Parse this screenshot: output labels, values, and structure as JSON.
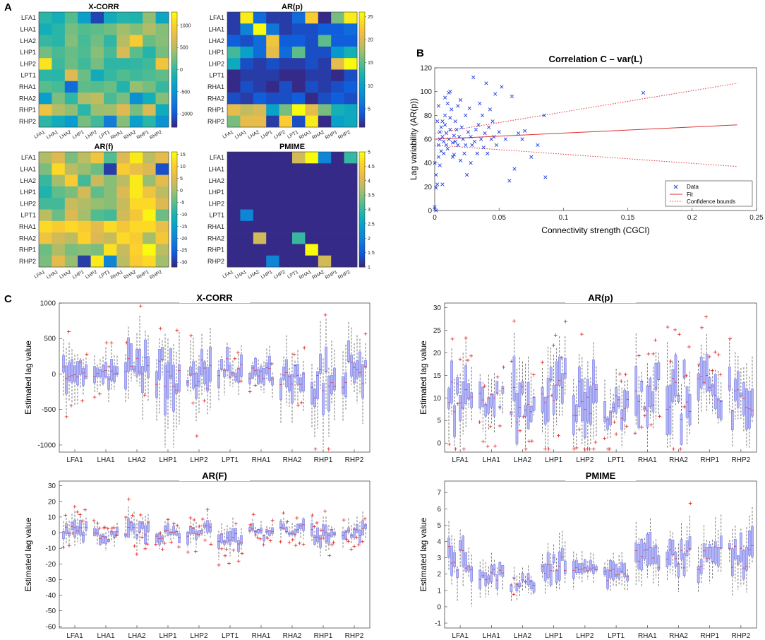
{
  "panels": {
    "A": "A",
    "B": "B",
    "C": "C"
  },
  "regions": [
    "LFA1",
    "LHA1",
    "LHA2",
    "LHP1",
    "LHP2",
    "LPT1",
    "RHA1",
    "RHA2",
    "RHP1",
    "RHP2"
  ],
  "heatmap_rows": [
    "LFA1",
    "LHA1",
    "LHA2",
    "LHP1",
    "LHP2",
    "LPT1",
    "RHA1",
    "RHA2",
    "RHP1",
    "RHP2"
  ],
  "heatmap_cols": [
    "LFA1",
    "LHA1",
    "LHA2",
    "LHP1",
    "LHP2",
    "LPT1",
    "RHA1",
    "RHA2",
    "RHP1",
    "RHP2"
  ],
  "chart_data": [
    {
      "type": "heatmap",
      "id": "hm-xcorr",
      "title": "X-CORR",
      "clim": [
        -1300,
        1300
      ],
      "colorbar_ticks": [
        1000,
        500,
        0,
        -500,
        -1000
      ],
      "colorbar_labels": [
        "1000",
        "500",
        "0",
        "-500",
        "-1000"
      ],
      "values": [
        [
          -50,
          -180,
          120,
          -380,
          -1150,
          -230,
          -80,
          -100,
          360,
          -300
        ],
        [
          -180,
          -60,
          250,
          120,
          160,
          230,
          420,
          300,
          480,
          310
        ],
        [
          0,
          -60,
          310,
          70,
          240,
          -30,
          520,
          970,
          200,
          320
        ],
        [
          240,
          80,
          200,
          100,
          320,
          80,
          680,
          160,
          -80,
          260
        ],
        [
          1150,
          30,
          220,
          40,
          250,
          -40,
          -40,
          -20,
          40,
          880
        ],
        [
          -40,
          -60,
          720,
          210,
          -230,
          -10,
          120,
          40,
          100,
          170
        ],
        [
          140,
          70,
          -880,
          160,
          130,
          210,
          -90,
          380,
          260,
          0
        ],
        [
          -400,
          280,
          -30,
          470,
          560,
          80,
          270,
          -540,
          -180,
          310
        ],
        [
          860,
          500,
          360,
          -60,
          400,
          420,
          720,
          260,
          690,
          -220
        ],
        [
          -40,
          -220,
          -420,
          260,
          40,
          -720,
          310,
          -380,
          -60,
          -520
        ]
      ]
    },
    {
      "type": "heatmap",
      "id": "hm-arp",
      "title": "AR(p)",
      "clim": [
        1,
        26
      ],
      "colorbar_ticks": [
        25,
        20,
        15,
        10,
        5
      ],
      "colorbar_labels": [
        "25",
        "20",
        "15",
        "10",
        "5"
      ],
      "values": [
        [
          2,
          25,
          5,
          2,
          2,
          5,
          23,
          1,
          16,
          25
        ],
        [
          2,
          7,
          26,
          6,
          2,
          3,
          3,
          4,
          4,
          5
        ],
        [
          4,
          3,
          5,
          22,
          4,
          4,
          3,
          15,
          4,
          4
        ],
        [
          14,
          10,
          5,
          21,
          5,
          15,
          3,
          3,
          9,
          12
        ],
        [
          11,
          3,
          2,
          3,
          2,
          2,
          3,
          2,
          21,
          26
        ],
        [
          1,
          2,
          2,
          2,
          1,
          1,
          2,
          2,
          1,
          3
        ],
        [
          1,
          3,
          2,
          1,
          3,
          1,
          3,
          2,
          3,
          4
        ],
        [
          3,
          2,
          4,
          3,
          3,
          4,
          1,
          3,
          4,
          3
        ],
        [
          21,
          19,
          20,
          10,
          16,
          26,
          21,
          16,
          12,
          11
        ],
        [
          16,
          21,
          21,
          2,
          23,
          3,
          25,
          1,
          10,
          11
        ]
      ]
    },
    {
      "type": "heatmap",
      "id": "hm-arf",
      "title": "AR(f)",
      "clim": [
        -32,
        16
      ],
      "colorbar_ticks": [
        15,
        10,
        5,
        0,
        -5,
        -10,
        -15,
        -20,
        -25,
        -30
      ],
      "colorbar_labels": [
        "15",
        "10",
        "5",
        "0",
        "-5",
        "-10",
        "-15",
        "-20",
        "-25",
        "-30"
      ],
      "values": [
        [
          1,
          5,
          -3,
          2,
          8,
          -6,
          5,
          14,
          2,
          6
        ],
        [
          -3,
          12,
          2,
          -1,
          -4,
          -30,
          10,
          7,
          5,
          -28
        ],
        [
          -8,
          0,
          10,
          -7,
          3,
          -2,
          2,
          14,
          -1,
          6
        ],
        [
          -10,
          -5,
          -3,
          4,
          -5,
          -2,
          5,
          14,
          8,
          2
        ],
        [
          -7,
          -7,
          3,
          1,
          -1,
          -2,
          3,
          12,
          12,
          5
        ],
        [
          2,
          -4,
          5,
          0,
          -6,
          -7,
          4,
          9,
          15,
          -4
        ],
        [
          12,
          10,
          12,
          10,
          6,
          12,
          9,
          12,
          12,
          7
        ],
        [
          8,
          4,
          2,
          11,
          5,
          3,
          12,
          10,
          0,
          9
        ],
        [
          -4,
          1,
          -3,
          -2,
          -3,
          13,
          3,
          11,
          16,
          2
        ],
        [
          -3,
          6,
          -1,
          -30,
          14,
          -20,
          2,
          10,
          12,
          0
        ]
      ]
    },
    {
      "type": "heatmap",
      "id": "hm-pmime",
      "title": "PMIME",
      "clim": [
        1,
        5
      ],
      "colorbar_ticks": [
        5,
        4.5,
        4,
        3.5,
        3,
        2.5,
        2,
        1.5,
        1
      ],
      "colorbar_labels": [
        "5",
        "4.5",
        "4",
        "3.5",
        "3",
        "2.5",
        "2",
        "1.5",
        "1"
      ],
      "values": [
        [
          1,
          1,
          1,
          1,
          1,
          4,
          5,
          2,
          1,
          3
        ],
        [
          1,
          1,
          1,
          1,
          1,
          1,
          1,
          1,
          1,
          1
        ],
        [
          1,
          1,
          1,
          1,
          1,
          1,
          1,
          1,
          1,
          1
        ],
        [
          1,
          1,
          1,
          1,
          1,
          1,
          1,
          1,
          1,
          1
        ],
        [
          1,
          1,
          1,
          1,
          1,
          1,
          1,
          1,
          1,
          1
        ],
        [
          1,
          2,
          1,
          1,
          1,
          1,
          1,
          1,
          1,
          1
        ],
        [
          1,
          1,
          1,
          1,
          1,
          1,
          1,
          1,
          1,
          1
        ],
        [
          1,
          1,
          4,
          1,
          1,
          3,
          1,
          1,
          1,
          1
        ],
        [
          1,
          1,
          1,
          1,
          1,
          1,
          5,
          1,
          1,
          1
        ],
        [
          1,
          1,
          1,
          2,
          1,
          1,
          1,
          4,
          1,
          1
        ]
      ]
    },
    {
      "type": "scatter",
      "id": "scatter",
      "title": "Correlation C – var(L)",
      "xlabel": "Connectivity strength (CGCI)",
      "ylabel": "Lag variability (AR(p))",
      "xlim": [
        0,
        0.25
      ],
      "ylim": [
        0,
        120
      ],
      "xticks": [
        0,
        0.05,
        0.1,
        0.15,
        0.2,
        0.25
      ],
      "xtick_labels": [
        "0",
        "0.05",
        "0.1",
        "0.15",
        "0.2",
        "0.25"
      ],
      "yticks": [
        0,
        20,
        40,
        60,
        80,
        100,
        120
      ],
      "ytick_labels": [
        "0",
        "20",
        "40",
        "60",
        "80",
        "100",
        "120"
      ],
      "legend": [
        "Data",
        "Fit",
        "Confidence bounds"
      ],
      "legend_position": "bottom-right",
      "fit": {
        "x0": 0,
        "y0": 60,
        "x1": 0.235,
        "y1": 72
      },
      "bounds_upper": {
        "x0": 0,
        "y0": 65,
        "x1": 0.235,
        "y1": 107
      },
      "bounds_lower": {
        "x0": 0,
        "y0": 55,
        "x1": 0.235,
        "y1": 37
      },
      "points": [
        [
          0.0,
          1
        ],
        [
          0.0,
          3
        ],
        [
          0.001,
          0
        ],
        [
          0.001,
          19
        ],
        [
          0.002,
          22
        ],
        [
          0.003,
          45
        ],
        [
          0.003,
          55
        ],
        [
          0.004,
          60
        ],
        [
          0.004,
          66
        ],
        [
          0.005,
          70
        ],
        [
          0.005,
          50
        ],
        [
          0.006,
          62
        ],
        [
          0.006,
          75
        ],
        [
          0.007,
          58
        ],
        [
          0.007,
          48
        ],
        [
          0.008,
          72
        ],
        [
          0.008,
          80
        ],
        [
          0.009,
          65
        ],
        [
          0.009,
          55
        ],
        [
          0.01,
          90
        ],
        [
          0.01,
          52
        ],
        [
          0.011,
          99
        ],
        [
          0.011,
          60
        ],
        [
          0.012,
          68
        ],
        [
          0.012,
          78
        ],
        [
          0.013,
          85
        ],
        [
          0.014,
          57
        ],
        [
          0.015,
          63
        ],
        [
          0.015,
          47
        ],
        [
          0.016,
          75
        ],
        [
          0.017,
          68
        ],
        [
          0.018,
          88
        ],
        [
          0.018,
          55
        ],
        [
          0.019,
          62
        ],
        [
          0.02,
          93
        ],
        [
          0.021,
          70
        ],
        [
          0.022,
          60
        ],
        [
          0.023,
          48
        ],
        [
          0.024,
          80
        ],
        [
          0.025,
          30
        ],
        [
          0.026,
          66
        ],
        [
          0.027,
          86
        ],
        [
          0.028,
          62
        ],
        [
          0.029,
          55
        ],
        [
          0.03,
          112
        ],
        [
          0.031,
          58
        ],
        [
          0.032,
          68
        ],
        [
          0.033,
          48
        ],
        [
          0.034,
          72
        ],
        [
          0.035,
          90
        ],
        [
          0.036,
          60
        ],
        [
          0.037,
          80
        ],
        [
          0.038,
          53
        ],
        [
          0.039,
          65
        ],
        [
          0.04,
          107
        ],
        [
          0.041,
          48
        ],
        [
          0.042,
          70
        ],
        [
          0.043,
          85
        ],
        [
          0.044,
          60
        ],
        [
          0.045,
          75
        ],
        [
          0.046,
          62
        ],
        [
          0.047,
          98
        ],
        [
          0.048,
          55
        ],
        [
          0.05,
          66
        ],
        [
          0.052,
          104
        ],
        [
          0.055,
          60
        ],
        [
          0.058,
          25
        ],
        [
          0.06,
          96
        ],
        [
          0.062,
          35
        ],
        [
          0.065,
          65
        ],
        [
          0.068,
          60
        ],
        [
          0.07,
          67
        ],
        [
          0.075,
          45
        ],
        [
          0.08,
          55
        ],
        [
          0.085,
          80
        ],
        [
          0.086,
          28
        ],
        [
          0.162,
          99
        ],
        [
          0.0,
          40
        ],
        [
          0.001,
          30
        ],
        [
          0.002,
          75
        ],
        [
          0.003,
          88
        ],
        [
          0.004,
          38
        ],
        [
          0.006,
          22
        ],
        [
          0.008,
          95
        ],
        [
          0.012,
          100
        ],
        [
          0.014,
          45
        ],
        [
          0.016,
          58
        ],
        [
          0.02,
          42
        ],
        [
          0.024,
          55
        ],
        [
          0.028,
          40
        ]
      ]
    },
    {
      "type": "box",
      "id": "box-xcorr",
      "title": "X-CORR",
      "ylabel": "Estimated lag value",
      "ylim": [
        -1100,
        1000
      ],
      "yticks": [
        1000,
        500,
        0,
        -500,
        -1000
      ],
      "ytick_labels": [
        "1000",
        "500",
        "0",
        "-500",
        "-1000"
      ],
      "groups": [
        "LFA1",
        "LHA1",
        "LHA2",
        "LHP1",
        "LHP2",
        "LPT1",
        "RHA1",
        "RHA2",
        "RHP1",
        "RHP2"
      ],
      "box_profile": {
        "spread": [
          420,
          280,
          600,
          700,
          520,
          350,
          300,
          460,
          650,
          500
        ],
        "center": [
          50,
          -30,
          120,
          -60,
          0,
          80,
          -20,
          30,
          -90,
          10
        ]
      },
      "outlier_count": 36
    },
    {
      "type": "box",
      "id": "box-arp",
      "title": "AR(p)",
      "ylabel": "Estimated lag value",
      "ylim": [
        -2,
        31
      ],
      "yticks": [
        30,
        25,
        20,
        15,
        10,
        5,
        0
      ],
      "ytick_labels": [
        "30",
        "25",
        "20",
        "15",
        "10",
        "5",
        "0"
      ],
      "groups": [
        "LFA1",
        "LHA1",
        "LHA2",
        "LHP1",
        "LHP2",
        "LPT1",
        "RHA1",
        "RHA2",
        "RHP1",
        "RHP2"
      ],
      "box_profile": {
        "spread": [
          10,
          8,
          12,
          9,
          11,
          7,
          10,
          13,
          8,
          9
        ],
        "center": [
          10,
          11,
          9,
          12,
          10,
          8,
          11,
          10,
          12,
          9
        ]
      },
      "outlier_count": 80
    },
    {
      "type": "box",
      "id": "box-arf",
      "title": "AR(F)",
      "ylabel": "Estimated lag value",
      "ylim": [
        -61,
        33
      ],
      "yticks": [
        30,
        20,
        10,
        0,
        -10,
        -20,
        -30,
        -40,
        -50,
        -60
      ],
      "ytick_labels": [
        "30",
        "20",
        "10",
        "0",
        "-10",
        "-20",
        "-30",
        "-40",
        "-50",
        "-60"
      ],
      "groups": [
        "LFA1",
        "LHA1",
        "LHA2",
        "LHP1",
        "LHP2",
        "LPT1",
        "RHA1",
        "RHA2",
        "RHP1",
        "RHP2"
      ],
      "box_profile": {
        "spread": [
          10,
          8,
          12,
          7,
          9,
          11,
          6,
          8,
          10,
          9
        ],
        "center": [
          0,
          -2,
          2,
          -1,
          1,
          -3,
          0,
          2,
          -2,
          1
        ]
      },
      "outlier_count": 90
    },
    {
      "type": "box",
      "id": "box-pmime",
      "title": "PMIME",
      "ylabel": "Estimated lag value",
      "ylim": [
        -1.3,
        7.7
      ],
      "yticks": [
        7,
        6,
        5,
        4,
        3,
        2,
        1,
        0,
        -1
      ],
      "ytick_labels": [
        "7",
        "6",
        "5",
        "4",
        "3",
        "2",
        "1",
        "0",
        "-1"
      ],
      "groups": [
        "LFA1",
        "LHA1",
        "LHA2",
        "LHP1",
        "LHP2",
        "LPT1",
        "RHA1",
        "RHA2",
        "RHP1",
        "RHP2"
      ],
      "box_profile": {
        "spread": [
          2,
          1,
          0.8,
          1.5,
          1,
          1.2,
          1.8,
          1.6,
          2,
          2
        ],
        "center": [
          3,
          2,
          1.5,
          2.5,
          2,
          2,
          3,
          3,
          3,
          3
        ]
      },
      "outlier_count": 6
    }
  ]
}
